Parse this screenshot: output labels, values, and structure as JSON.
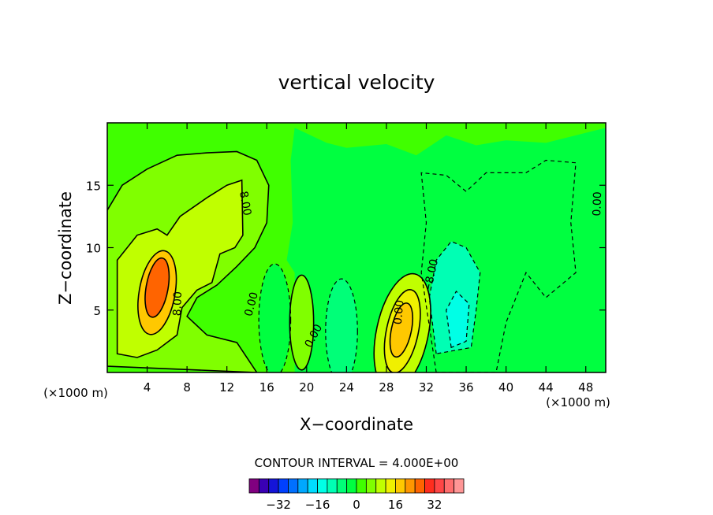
{
  "chart_data": {
    "type": "heatmap",
    "title": "vertical velocity",
    "xlabel": "X−coordinate",
    "ylabel": "Z−coordinate",
    "x_unit_left": "(×1000 m)",
    "x_unit_right": "(×1000 m)",
    "xlim": [
      0,
      50
    ],
    "ylim": [
      0,
      20
    ],
    "x_ticks": [
      4,
      8,
      12,
      16,
      20,
      24,
      28,
      32,
      36,
      40,
      44,
      48
    ],
    "y_ticks": [
      5,
      10,
      15
    ],
    "contour_interval_text": "CONTOUR INTERVAL = 4.000E+00",
    "contour_interval": 4.0,
    "contour_labels": [
      {
        "text": "8.00",
        "x": 13.5,
        "y": 13.5,
        "angle": 80
      },
      {
        "text": "8.00",
        "x": 7.4,
        "y": 5.5,
        "angle": -88
      },
      {
        "text": "0.00",
        "x": 14.8,
        "y": 5.4,
        "angle": -75
      },
      {
        "text": "0.00",
        "x": 21.0,
        "y": 2.8,
        "angle": -62
      },
      {
        "text": "0.00",
        "x": 29.6,
        "y": 4.8,
        "angle": -85
      },
      {
        "text": "−8.00",
        "x": 32.8,
        "y": 7.7,
        "angle": -78
      },
      {
        "text": "0.00",
        "x": 49.5,
        "y": 13.5,
        "angle": -88
      }
    ],
    "colorbar": {
      "colors": [
        "#800080",
        "#3a00b4",
        "#1414d8",
        "#0040ff",
        "#0070ff",
        "#00a8ff",
        "#00dcff",
        "#00ffe6",
        "#00ffb4",
        "#00ff78",
        "#00ff40",
        "#40ff00",
        "#80ff00",
        "#c0ff00",
        "#f0f000",
        "#ffc800",
        "#ff9600",
        "#ff6400",
        "#ff2d1e",
        "#ff4646",
        "#ff6e6e",
        "#ff9696"
      ],
      "tick_labels": [
        "−32",
        "−16",
        "0",
        "16",
        "32"
      ],
      "tick_values": [
        -32,
        -16,
        0,
        16,
        32
      ],
      "range": [
        -44,
        44
      ]
    }
  }
}
